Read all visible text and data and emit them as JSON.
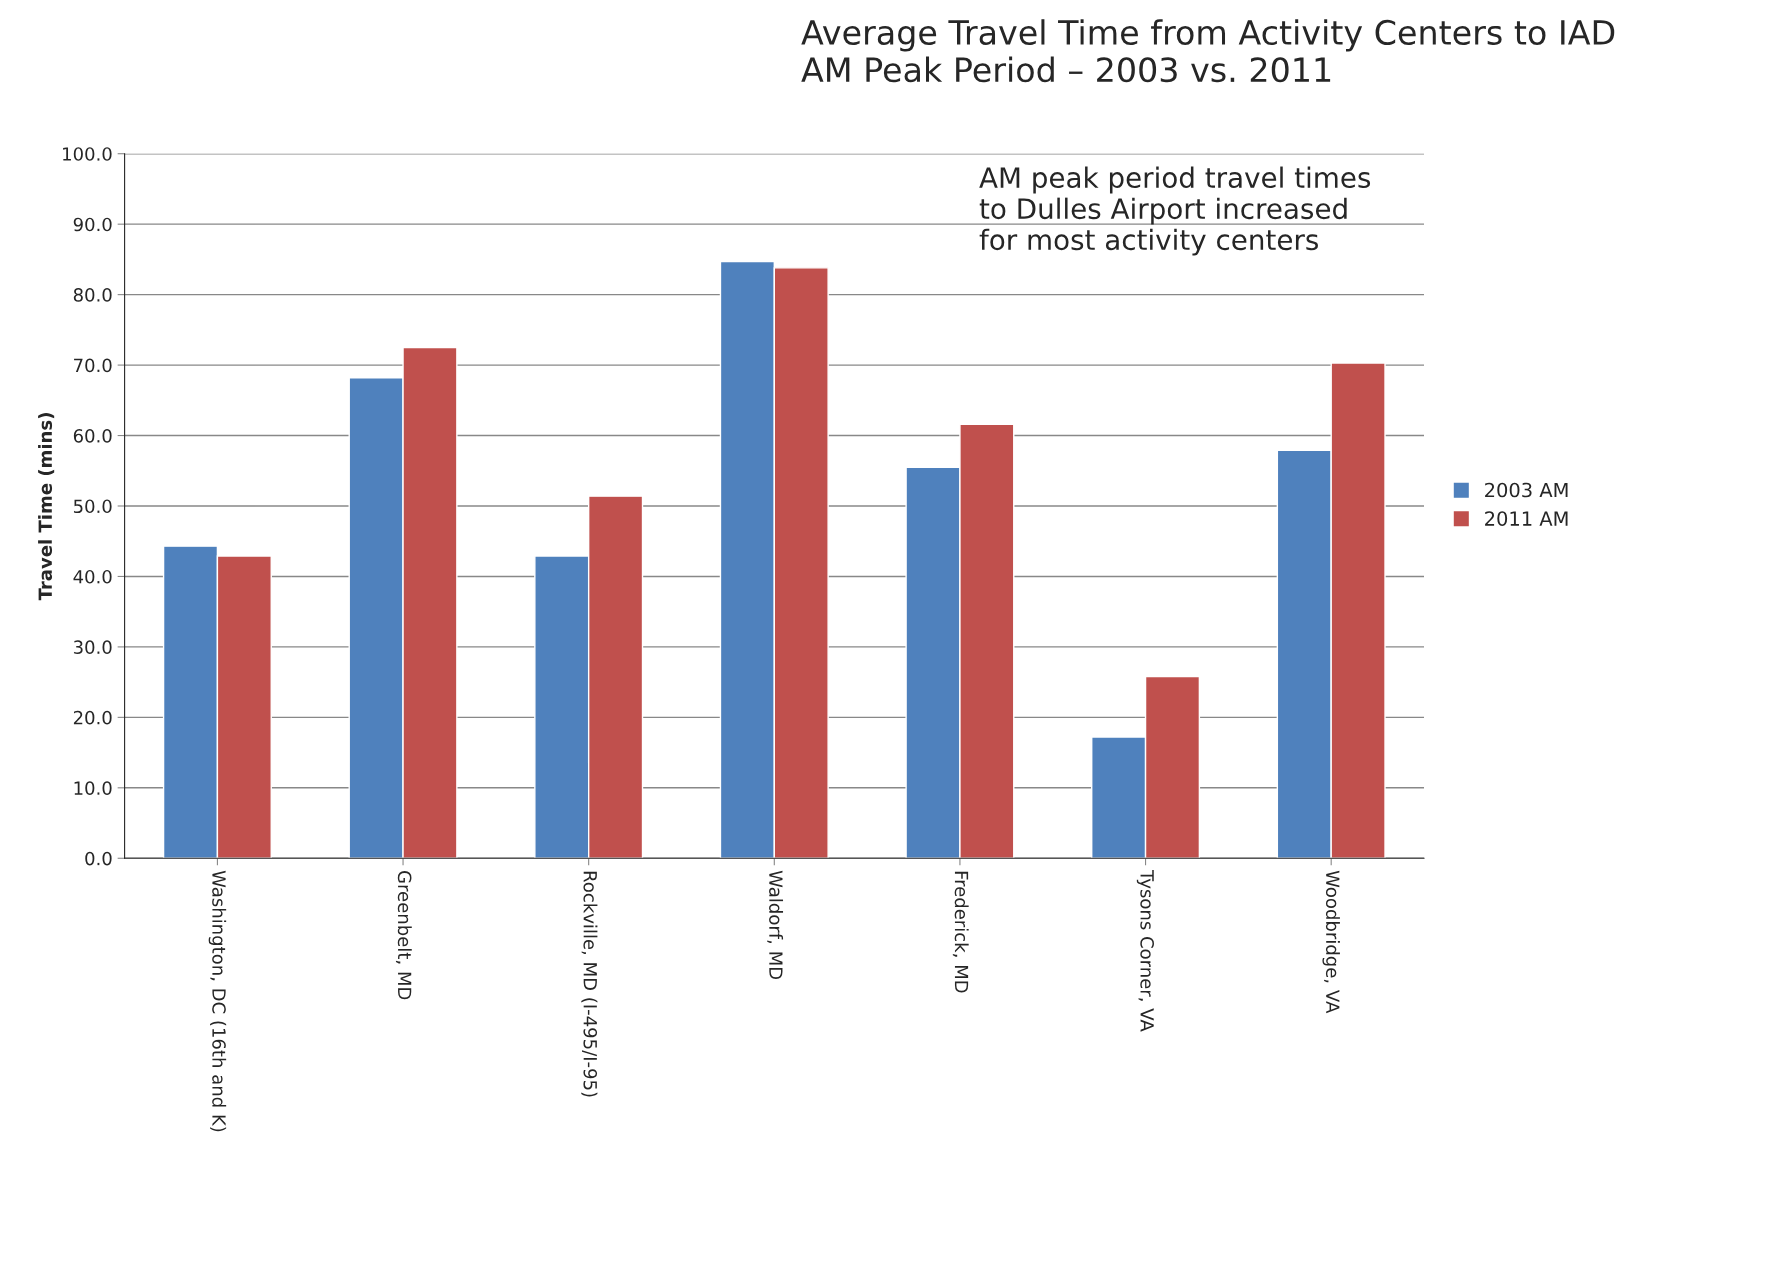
{
  "chart_data": {
    "type": "bar",
    "title": "Average Travel Time from Activity Centers to IAD\nAM Peak Period – 2003 vs. 2011",
    "ylabel": "Travel Time (mins)",
    "categories": [
      "Washington, DC (16th and K)",
      "Greenbelt, MD",
      "Rockville, MD (I-495/I-95)",
      "Waldorf, MD",
      "Frederick, MD",
      "Tysons Corner, VA",
      "Woodbridge, VA"
    ],
    "series": [
      {
        "name": "2003 AM",
        "color": "#4f81bd",
        "values": [
          44.3,
          68.2,
          42.9,
          84.7,
          55.5,
          17.2,
          57.9
        ]
      },
      {
        "name": "2011 AM",
        "color": "#c0504d",
        "values": [
          42.9,
          72.5,
          51.4,
          83.8,
          61.6,
          25.8,
          70.3
        ]
      }
    ],
    "ylim": [
      0,
      100
    ],
    "yticks": [
      {
        "value": 0,
        "label": "0.0"
      },
      {
        "value": 10,
        "label": "10.0"
      },
      {
        "value": 20,
        "label": "20.0"
      },
      {
        "value": 30,
        "label": "30.0"
      },
      {
        "value": 40,
        "label": "40.0"
      },
      {
        "value": 50,
        "label": "50.0"
      },
      {
        "value": 60,
        "label": "60.0"
      },
      {
        "value": 70,
        "label": "70.0"
      },
      {
        "value": 80,
        "label": "80.0"
      },
      {
        "value": 90,
        "label": "90.0"
      },
      {
        "value": 100,
        "label": "100.0"
      }
    ],
    "grid": "y",
    "legend": "right",
    "annotations": [
      "AM peak period travel times\nto Dulles Airport increased\nfor most activity centers"
    ]
  }
}
